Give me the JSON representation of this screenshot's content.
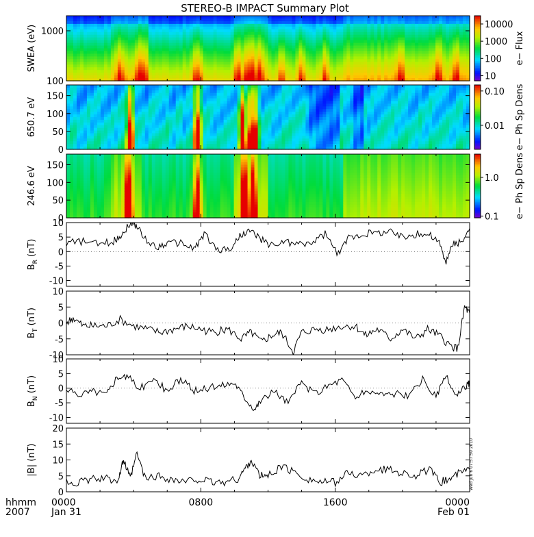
{
  "title": "STEREO-B IMPACT Summary Plot",
  "time_axis": {
    "row_label": "hhmm",
    "year_label": "2007",
    "ticks": [
      {
        "hours": 0,
        "label": "0000",
        "date": "Jan 31"
      },
      {
        "hours": 8,
        "label": "0800",
        "date": ""
      },
      {
        "hours": 16,
        "label": "1600",
        "date": ""
      },
      {
        "hours": 24,
        "label": "0000",
        "date": "Feb 01"
      }
    ]
  },
  "timestamp": "Wed Jun  6 07:57:50 2010",
  "colors": {
    "line": "#000000",
    "background": "#ffffff"
  },
  "chart_data": [
    {
      "id": "swea",
      "type": "heatmap",
      "ylabel": "SWEA (eV)",
      "y_scale": "log",
      "ylim": [
        100,
        2000
      ],
      "yticks": [
        {
          "value": 100,
          "label": "100"
        },
        {
          "value": 1000,
          "label": "1000"
        }
      ],
      "colorbar": {
        "label": "e− Flux",
        "scale": "log",
        "range": [
          5,
          30000
        ],
        "ticks": [
          {
            "value": 10,
            "label": "10"
          },
          {
            "value": 100,
            "label": "100"
          },
          {
            "value": 1000,
            "label": "1000"
          },
          {
            "value": 10000,
            "label": "10000"
          }
        ]
      },
      "bursts_hours": [
        3.2,
        4.3,
        4.6,
        7.7,
        7.9,
        10.2,
        10.8,
        11.1,
        11.5,
        12.8,
        14.0,
        15.4,
        19.9,
        22.1,
        23.2
      ],
      "active_ranges_hours": [
        [
          2.7,
          4.8
        ],
        [
          10.0,
          12.0
        ],
        [
          16.4,
          23.9
        ]
      ]
    },
    {
      "id": "pad650",
      "type": "heatmap",
      "ylabel": "650.7 eV",
      "ylim": [
        0,
        180
      ],
      "yticks": [
        {
          "value": 0,
          "label": "0"
        },
        {
          "value": 50,
          "label": "50"
        },
        {
          "value": 100,
          "label": "100"
        },
        {
          "value": 150,
          "label": "150"
        }
      ],
      "colorbar": {
        "label": "e− Ph Sp Dens",
        "scale": "log",
        "range": [
          0.002,
          0.15
        ],
        "ticks": [
          {
            "value": 0.01,
            "label": "0.01"
          },
          {
            "value": 0.1,
            "label": "0.10"
          }
        ]
      },
      "bursts_hours": [
        3.8,
        7.8,
        10.5,
        11.0,
        11.2
      ],
      "quiet_ranges_hours": [
        [
          14.5,
          16.2
        ],
        [
          17.0,
          17.6
        ]
      ]
    },
    {
      "id": "pad246",
      "type": "heatmap",
      "ylabel": "246.6 eV",
      "ylim": [
        0,
        180
      ],
      "yticks": [
        {
          "value": 0,
          "label": "0"
        },
        {
          "value": 50,
          "label": "50"
        },
        {
          "value": 100,
          "label": "100"
        },
        {
          "value": 150,
          "label": "150"
        }
      ],
      "colorbar": {
        "label": "e− Ph Sp Dens",
        "scale": "log",
        "range": [
          0.09,
          4
        ],
        "ticks": [
          {
            "value": 0.1,
            "label": "0.1"
          },
          {
            "value": 1.0,
            "label": "1.0"
          }
        ]
      },
      "bursts_hours": [
        3.7,
        7.8,
        10.6,
        11.1
      ],
      "active_ranges_hours": [
        [
          2.6,
          4.5
        ],
        [
          10.0,
          12.0
        ],
        [
          16.5,
          23.9
        ]
      ]
    },
    {
      "id": "br",
      "type": "line",
      "ylabel_main": "B",
      "ylabel_sub": "R",
      "ylabel_unit": " (nT)",
      "ylim": [
        -12,
        10
      ],
      "ytick_values": [
        -10,
        -5,
        0,
        5,
        10
      ],
      "x": [
        0,
        1,
        2,
        2.8,
        3.3,
        3.8,
        4.2,
        4.6,
        5.4,
        6,
        6.8,
        7.6,
        8.2,
        9,
        9.8,
        10.4,
        11,
        11.6,
        12.3,
        13,
        13.8,
        14.6,
        15.4,
        16.2,
        16.8,
        17.6,
        18.4,
        19.2,
        20,
        20.8,
        21.6,
        22.2,
        22.6,
        23,
        23.5,
        24
      ],
      "y": [
        3,
        3.5,
        2.5,
        3.5,
        6,
        10,
        9,
        4.5,
        1.5,
        3,
        3,
        1,
        6,
        0.5,
        1,
        6,
        7,
        4,
        2,
        3.5,
        2.5,
        3,
        6,
        -1,
        5,
        6,
        6.5,
        7,
        5,
        6,
        6,
        3,
        -4,
        3,
        3,
        8
      ]
    },
    {
      "id": "bt",
      "type": "line",
      "ylabel_main": "B",
      "ylabel_sub": "T",
      "ylabel_unit": " (nT)",
      "ylim": [
        -10,
        10
      ],
      "ytick_values": [
        -10,
        -5,
        0,
        5,
        10
      ],
      "x": [
        0,
        0.4,
        1,
        1.6,
        2.4,
        3.2,
        4,
        4.8,
        5.6,
        6.4,
        7.2,
        8,
        8.8,
        9.6,
        10.4,
        11,
        11.6,
        12.2,
        12.8,
        13.5,
        14,
        14.8,
        15.6,
        16.4,
        17.2,
        17.8,
        18.5,
        19.3,
        20,
        20.8,
        21.5,
        22.2,
        22.8,
        23.3,
        23.7,
        24
      ],
      "y": [
        0,
        1.5,
        -1,
        -1,
        -1,
        1,
        -1,
        -2,
        -3,
        -2,
        -1,
        -2,
        -3,
        -2,
        -5,
        -3,
        -6,
        -4,
        -3,
        -9,
        -3,
        -2,
        -2,
        -1,
        -1,
        -4,
        -2,
        -5,
        -2,
        -5,
        -2,
        -4,
        -7,
        -8,
        5,
        3
      ]
    },
    {
      "id": "bn",
      "type": "line",
      "ylabel_main": "B",
      "ylabel_sub": "N",
      "ylabel_unit": " (nT)",
      "ylim": [
        -12,
        10
      ],
      "ytick_values": [
        -10,
        -5,
        0,
        5,
        10
      ],
      "x": [
        0,
        0.8,
        1.6,
        2.4,
        3,
        3.6,
        4.4,
        5.2,
        6,
        6.8,
        7.6,
        8.4,
        9.2,
        10,
        10.6,
        11.2,
        11.6,
        12.4,
        13.2,
        14,
        14.8,
        15.6,
        16.4,
        17.2,
        18,
        18.8,
        19.6,
        20.4,
        21.2,
        22,
        22.6,
        23.2,
        23.8,
        24
      ],
      "y": [
        -1,
        -2,
        -1,
        -2,
        4,
        4,
        0,
        3,
        -1,
        3,
        -1,
        0,
        1,
        2,
        -3,
        -7,
        -4,
        -1,
        -5,
        2,
        -2,
        1,
        3,
        -3,
        -1,
        -2,
        -2,
        -3,
        3,
        -3,
        4,
        -3,
        1,
        2
      ]
    },
    {
      "id": "btot",
      "type": "line",
      "ylabel_main": "|B|",
      "ylabel_sub": "",
      "ylabel_unit": " (nT)",
      "ylim": [
        0,
        20
      ],
      "ytick_values": [
        0,
        5,
        10,
        15,
        20
      ],
      "x": [
        0,
        0.8,
        1.6,
        2.4,
        3.1,
        3.4,
        3.8,
        4.2,
        4.7,
        5.4,
        6.2,
        7,
        7.8,
        8.6,
        9.4,
        10.2,
        10.6,
        11,
        11.5,
        12,
        12.8,
        13.6,
        14.4,
        15.2,
        16,
        16.8,
        17.6,
        18.4,
        19.2,
        20,
        20.8,
        21.6,
        22.2,
        22.8,
        23.4,
        24
      ],
      "y": [
        3,
        3,
        4,
        4,
        4,
        10,
        4,
        12,
        4,
        5,
        4,
        3,
        4,
        3,
        3,
        4,
        7,
        10,
        5,
        5,
        8,
        6,
        4,
        3,
        3,
        6,
        5,
        7,
        7,
        6,
        5,
        7,
        3,
        4,
        6,
        7
      ]
    }
  ]
}
